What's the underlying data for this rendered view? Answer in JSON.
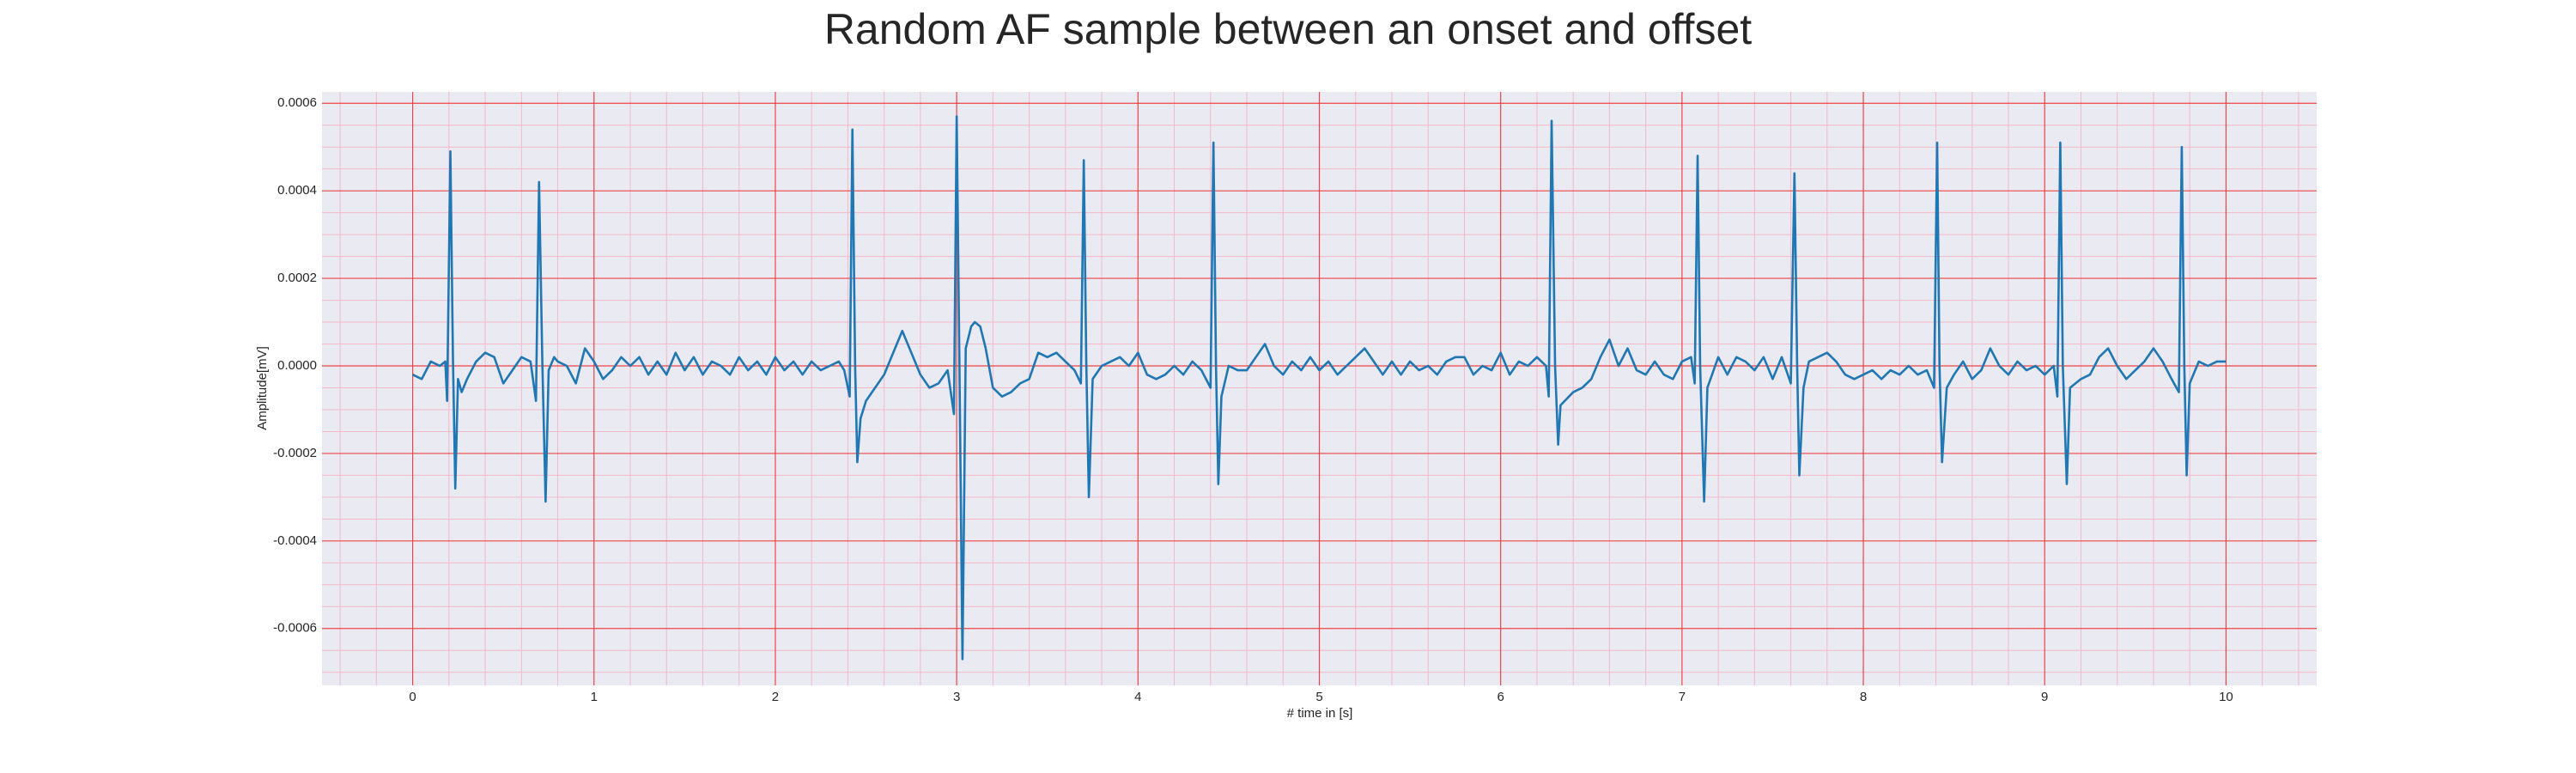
{
  "chart_data": {
    "type": "line",
    "title": "Random AF sample between an onset and offset",
    "xlabel": "# time in [s]",
    "ylabel": "Amplitude[mV]",
    "color": "#1f77b4",
    "grid": true,
    "xlim": [
      -0.5,
      10.5
    ],
    "ylim": [
      -0.00073,
      0.000626
    ],
    "xticks": [
      0,
      1,
      2,
      3,
      4,
      5,
      6,
      7,
      8,
      9,
      10
    ],
    "yticks": [
      0.0006,
      0.0004,
      0.0002,
      {
        "value": 0,
        "label": "0.0000"
      },
      -0.0002,
      -0.0004,
      -0.0006
    ],
    "xticks_minor": [
      -0.4,
      -0.2,
      0.2,
      0.4,
      0.6,
      0.8,
      1.2,
      1.4,
      1.6,
      1.8,
      2.2,
      2.4,
      2.6,
      2.8,
      3.2,
      3.4,
      3.6,
      3.8,
      4.2,
      4.4,
      4.6,
      4.8,
      5.2,
      5.4,
      5.6,
      5.8,
      6.2,
      6.4,
      6.6,
      6.8,
      7.2,
      7.4,
      7.6,
      7.8,
      8.2,
      8.4,
      8.6,
      8.8,
      9.2,
      9.4,
      9.6,
      9.8,
      10.2,
      10.4
    ],
    "yticks_minor": [
      -0.0007,
      -0.00065,
      -0.00055,
      -0.0005,
      -0.00045,
      -0.00035,
      -0.0003,
      -0.00025,
      -0.00015,
      -0.0001,
      -5e-05,
      5e-05,
      0.0001,
      0.00015,
      0.00025,
      0.0003,
      0.00035,
      0.00045,
      0.0005,
      0.00055
    ],
    "x": [
      0,
      0.05,
      0.1,
      0.15,
      0.18,
      0.19,
      0.208,
      0.222,
      0.235,
      0.25,
      0.27,
      0.3,
      0.35,
      0.4,
      0.45,
      0.5,
      0.55,
      0.6,
      0.65,
      0.68,
      0.697,
      0.715,
      0.733,
      0.75,
      0.78,
      0.8,
      0.85,
      0.9,
      0.95,
      1.0,
      1.05,
      1.1,
      1.15,
      1.2,
      1.25,
      1.3,
      1.35,
      1.4,
      1.45,
      1.5,
      1.55,
      1.6,
      1.65,
      1.7,
      1.75,
      1.8,
      1.85,
      1.9,
      1.95,
      2.0,
      2.05,
      2.1,
      2.15,
      2.2,
      2.25,
      2.3,
      2.35,
      2.38,
      2.41,
      2.425,
      2.44,
      2.452,
      2.47,
      2.5,
      2.55,
      2.6,
      2.65,
      2.7,
      2.75,
      2.8,
      2.85,
      2.9,
      2.95,
      2.985,
      3.0,
      3.015,
      3.032,
      3.05,
      3.08,
      3.1,
      3.13,
      3.16,
      3.2,
      3.25,
      3.3,
      3.35,
      3.4,
      3.45,
      3.5,
      3.55,
      3.6,
      3.65,
      3.685,
      3.701,
      3.715,
      3.729,
      3.75,
      3.8,
      3.85,
      3.9,
      3.95,
      4.0,
      4.05,
      4.1,
      4.15,
      4.2,
      4.25,
      4.3,
      4.35,
      4.4,
      4.416,
      4.43,
      4.443,
      4.46,
      4.5,
      4.55,
      4.6,
      4.65,
      4.7,
      4.75,
      4.8,
      4.85,
      4.9,
      4.95,
      5.0,
      5.05,
      5.1,
      5.15,
      5.2,
      5.25,
      5.3,
      5.35,
      5.4,
      5.45,
      5.5,
      5.55,
      5.6,
      5.65,
      5.7,
      5.75,
      5.8,
      5.85,
      5.9,
      5.95,
      6.0,
      6.05,
      6.1,
      6.15,
      6.2,
      6.25,
      6.265,
      6.281,
      6.3,
      6.317,
      6.33,
      6.4,
      6.45,
      6.5,
      6.55,
      6.6,
      6.65,
      6.7,
      6.75,
      6.8,
      6.85,
      6.9,
      6.95,
      7.0,
      7.05,
      7.07,
      7.086,
      7.1,
      7.122,
      7.14,
      7.2,
      7.25,
      7.3,
      7.35,
      7.4,
      7.45,
      7.5,
      7.55,
      7.6,
      7.62,
      7.635,
      7.647,
      7.67,
      7.7,
      7.75,
      7.8,
      7.85,
      7.9,
      7.95,
      8.0,
      8.05,
      8.1,
      8.15,
      8.2,
      8.25,
      8.3,
      8.35,
      8.39,
      8.407,
      8.42,
      8.434,
      8.46,
      8.5,
      8.55,
      8.6,
      8.65,
      8.7,
      8.75,
      8.8,
      8.85,
      8.9,
      8.95,
      9.0,
      9.05,
      9.07,
      9.086,
      9.1,
      9.122,
      9.14,
      9.2,
      9.25,
      9.3,
      9.35,
      9.4,
      9.45,
      9.5,
      9.55,
      9.6,
      9.65,
      9.7,
      9.74,
      9.756,
      9.77,
      9.783,
      9.8,
      9.85,
      9.9,
      9.95,
      10.0
    ],
    "values": [
      -2e-05,
      -3e-05,
      1e-05,
      0,
      1e-05,
      -8e-05,
      0.00049,
      2e-05,
      -0.00028,
      -3e-05,
      -6e-05,
      -3e-05,
      1e-05,
      3e-05,
      2e-05,
      -4e-05,
      -1e-05,
      2e-05,
      1e-05,
      -8e-05,
      0.00042,
      1e-05,
      -0.00031,
      -1e-05,
      2e-05,
      1e-05,
      0,
      -4e-05,
      4e-05,
      1e-05,
      -3e-05,
      -1e-05,
      2e-05,
      0,
      2e-05,
      -2e-05,
      1e-05,
      -2e-05,
      3e-05,
      -1e-05,
      2e-05,
      -2e-05,
      1e-05,
      0,
      -2e-05,
      2e-05,
      -1e-05,
      1e-05,
      -2e-05,
      2e-05,
      -1e-05,
      1e-05,
      -2e-05,
      1e-05,
      -1e-05,
      0,
      1e-05,
      -1e-05,
      -7e-05,
      0.00054,
      0,
      -0.00022,
      -0.00012,
      -8e-05,
      -5e-05,
      -2e-05,
      3e-05,
      8e-05,
      3e-05,
      -2e-05,
      -5e-05,
      -4e-05,
      -1e-05,
      -0.00011,
      0.00057,
      1e-05,
      -0.00067,
      4e-05,
      9e-05,
      0.0001,
      9e-05,
      4e-05,
      -5e-05,
      -7e-05,
      -6e-05,
      -4e-05,
      -3e-05,
      3e-05,
      2e-05,
      3e-05,
      1e-05,
      -1e-05,
      -4e-05,
      0.00047,
      0,
      -0.0003,
      -3e-05,
      0,
      1e-05,
      2e-05,
      0,
      3e-05,
      -2e-05,
      -3e-05,
      -2e-05,
      0,
      -2e-05,
      1e-05,
      -1e-05,
      -5e-05,
      0.00051,
      0,
      -0.00027,
      -7e-05,
      0,
      -1e-05,
      -1e-05,
      2e-05,
      5e-05,
      0,
      -2e-05,
      1e-05,
      -1e-05,
      2e-05,
      -1e-05,
      1e-05,
      -2e-05,
      0,
      2e-05,
      4e-05,
      1e-05,
      -2e-05,
      1e-05,
      -2e-05,
      1e-05,
      -1e-05,
      0,
      -2e-05,
      1e-05,
      2e-05,
      2e-05,
      -2e-05,
      0,
      -1e-05,
      3e-05,
      -2e-05,
      1e-05,
      0,
      2e-05,
      0,
      -7e-05,
      0.00056,
      0,
      -0.00018,
      -9e-05,
      -6e-05,
      -5e-05,
      -3e-05,
      2e-05,
      6e-05,
      0,
      4e-05,
      -1e-05,
      -2e-05,
      1e-05,
      -2e-05,
      -3e-05,
      1e-05,
      2e-05,
      -4e-05,
      0.00048,
      0,
      -0.00031,
      -5e-05,
      2e-05,
      -2e-05,
      2e-05,
      1e-05,
      -1e-05,
      2e-05,
      -3e-05,
      2e-05,
      -4e-05,
      0.00044,
      0,
      -0.00025,
      -5e-05,
      1e-05,
      2e-05,
      3e-05,
      1e-05,
      -2e-05,
      -3e-05,
      -2e-05,
      -1e-05,
      -3e-05,
      -1e-05,
      -2e-05,
      0,
      -2e-05,
      -1e-05,
      -5e-05,
      0.00051,
      0,
      -0.00022,
      -5e-05,
      -2e-05,
      1e-05,
      -3e-05,
      -1e-05,
      4e-05,
      0,
      -2e-05,
      1e-05,
      -1e-05,
      0,
      -2e-05,
      0,
      -7e-05,
      0.00051,
      0,
      -0.00027,
      -5e-05,
      -3e-05,
      -2e-05,
      2e-05,
      4e-05,
      0,
      -3e-05,
      -1e-05,
      1e-05,
      4e-05,
      1e-05,
      -3e-05,
      -6e-05,
      0.0005,
      0,
      -0.00025,
      -4e-05,
      1e-05,
      0,
      1e-05,
      1e-05
    ]
  }
}
